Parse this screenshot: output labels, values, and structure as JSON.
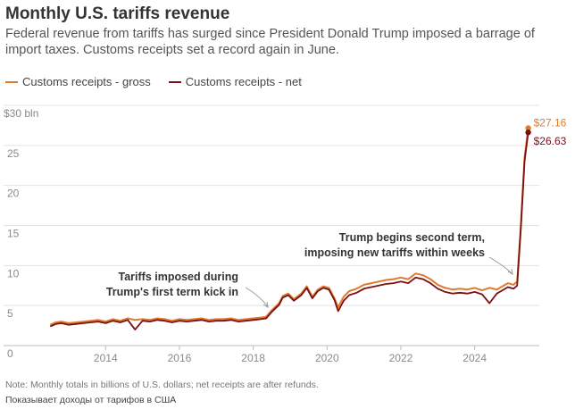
{
  "colors": {
    "gross": "#e07b2e",
    "net": "#7b0f12",
    "grid": "#e3e3e3",
    "axis": "#bdbdbd",
    "text": "#8a8a8a",
    "annotation": "#333333"
  },
  "note": "Note: Monthly totals in billions of U.S. dollars; net receipts are after refunds.",
  "caption": "Показывает доходы от тарифов в США",
  "chart_data": {
    "type": "line",
    "title": "Monthly U.S. tariffs revenue",
    "subtitle": "Federal revenue from tariffs has surged since President Donald Trump imposed a barrage of import taxes. Customs receipts set a record again in June.",
    "xlabel": "",
    "ylabel": "",
    "xlim": [
      2012.3,
      2025.75
    ],
    "ylim": [
      0,
      30
    ],
    "yticks": [
      0,
      5,
      10,
      15,
      20,
      25,
      30
    ],
    "ytick_labels": [
      "0",
      "5",
      "10",
      "15",
      "20",
      "25",
      "$30 bln"
    ],
    "xticks": [
      2014,
      2016,
      2018,
      2020,
      2022,
      2024
    ],
    "xtick_labels": [
      "2014",
      "2016",
      "2018",
      "2020",
      "2022",
      "2024"
    ],
    "grid": true,
    "legend": "top-left",
    "series": [
      {
        "name": "Customs receipts - gross",
        "color": "#e07b2e",
        "x": [
          2012.5,
          2012.65,
          2012.8,
          2013.0,
          2013.2,
          2013.4,
          2013.6,
          2013.8,
          2014.0,
          2014.2,
          2014.4,
          2014.6,
          2014.8,
          2015.0,
          2015.2,
          2015.4,
          2015.6,
          2015.8,
          2016.0,
          2016.2,
          2016.4,
          2016.6,
          2016.8,
          2017.0,
          2017.2,
          2017.4,
          2017.6,
          2017.8,
          2018.0,
          2018.2,
          2018.35,
          2018.5,
          2018.7,
          2018.8,
          2018.95,
          2019.1,
          2019.3,
          2019.45,
          2019.6,
          2019.75,
          2019.9,
          2020.05,
          2020.2,
          2020.3,
          2020.45,
          2020.6,
          2020.8,
          2021.0,
          2021.2,
          2021.4,
          2021.6,
          2021.8,
          2022.0,
          2022.2,
          2022.4,
          2022.6,
          2022.8,
          2023.0,
          2023.2,
          2023.4,
          2023.6,
          2023.8,
          2024.0,
          2024.2,
          2024.4,
          2024.6,
          2024.75,
          2024.9,
          2025.05,
          2025.15,
          2025.25,
          2025.35,
          2025.45
        ],
        "values": [
          2.6,
          2.9,
          3.0,
          2.8,
          2.9,
          3.0,
          3.1,
          3.2,
          3.0,
          3.3,
          3.1,
          3.4,
          3.2,
          3.3,
          3.2,
          3.4,
          3.3,
          3.1,
          3.3,
          3.2,
          3.3,
          3.4,
          3.2,
          3.3,
          3.3,
          3.4,
          3.2,
          3.3,
          3.4,
          3.5,
          3.6,
          4.4,
          5.3,
          6.2,
          6.5,
          5.8,
          6.5,
          7.4,
          6.1,
          7.0,
          7.4,
          7.2,
          5.9,
          4.8,
          6.1,
          6.8,
          7.1,
          7.6,
          7.8,
          8.0,
          8.2,
          8.3,
          8.5,
          8.3,
          9.0,
          8.8,
          8.3,
          7.6,
          7.2,
          7.0,
          7.1,
          7.0,
          7.2,
          6.9,
          7.2,
          7.0,
          7.4,
          7.8,
          7.6,
          8.0,
          15.0,
          23.5,
          27.16
        ]
      },
      {
        "name": "Customs receipts - net",
        "color": "#7b0f12",
        "x": [
          2012.5,
          2012.65,
          2012.8,
          2013.0,
          2013.2,
          2013.4,
          2013.6,
          2013.8,
          2014.0,
          2014.2,
          2014.4,
          2014.6,
          2014.8,
          2015.0,
          2015.2,
          2015.4,
          2015.6,
          2015.8,
          2016.0,
          2016.2,
          2016.4,
          2016.6,
          2016.8,
          2017.0,
          2017.2,
          2017.4,
          2017.6,
          2017.8,
          2018.0,
          2018.2,
          2018.35,
          2018.5,
          2018.7,
          2018.8,
          2018.95,
          2019.1,
          2019.3,
          2019.45,
          2019.6,
          2019.75,
          2019.9,
          2020.05,
          2020.2,
          2020.3,
          2020.45,
          2020.6,
          2020.8,
          2021.0,
          2021.2,
          2021.4,
          2021.6,
          2021.8,
          2022.0,
          2022.2,
          2022.4,
          2022.6,
          2022.8,
          2023.0,
          2023.2,
          2023.4,
          2023.6,
          2023.8,
          2024.0,
          2024.2,
          2024.4,
          2024.6,
          2024.75,
          2024.9,
          2025.05,
          2025.15,
          2025.25,
          2025.35,
          2025.45
        ],
        "values": [
          2.4,
          2.7,
          2.8,
          2.6,
          2.7,
          2.8,
          2.9,
          3.0,
          2.8,
          3.1,
          2.9,
          3.2,
          2.0,
          3.1,
          3.0,
          3.2,
          3.1,
          2.9,
          3.1,
          3.0,
          3.1,
          3.2,
          3.0,
          3.1,
          3.1,
          3.2,
          3.0,
          3.1,
          3.2,
          3.3,
          3.4,
          4.2,
          5.1,
          6.0,
          6.3,
          5.6,
          6.3,
          7.2,
          5.9,
          6.8,
          7.2,
          7.0,
          5.7,
          4.3,
          5.6,
          6.3,
          6.6,
          7.1,
          7.3,
          7.5,
          7.7,
          7.8,
          8.0,
          7.8,
          8.5,
          8.3,
          7.8,
          7.1,
          6.7,
          6.5,
          6.6,
          6.5,
          6.7,
          6.4,
          5.3,
          6.5,
          6.9,
          7.3,
          7.1,
          7.5,
          14.5,
          23.0,
          26.63
        ]
      }
    ],
    "end_labels": [
      {
        "series": 0,
        "text": "$27.16"
      },
      {
        "series": 1,
        "text": "$26.63"
      }
    ],
    "annotations": [
      {
        "lines": [
          "Tariffs imposed during",
          "Trump's first term kick in"
        ],
        "point": [
          2018.45,
          4.2
        ]
      },
      {
        "lines": [
          "Trump begins second term,",
          "imposing new tariffs within weeks"
        ],
        "point": [
          2025.1,
          8.3
        ]
      }
    ]
  }
}
